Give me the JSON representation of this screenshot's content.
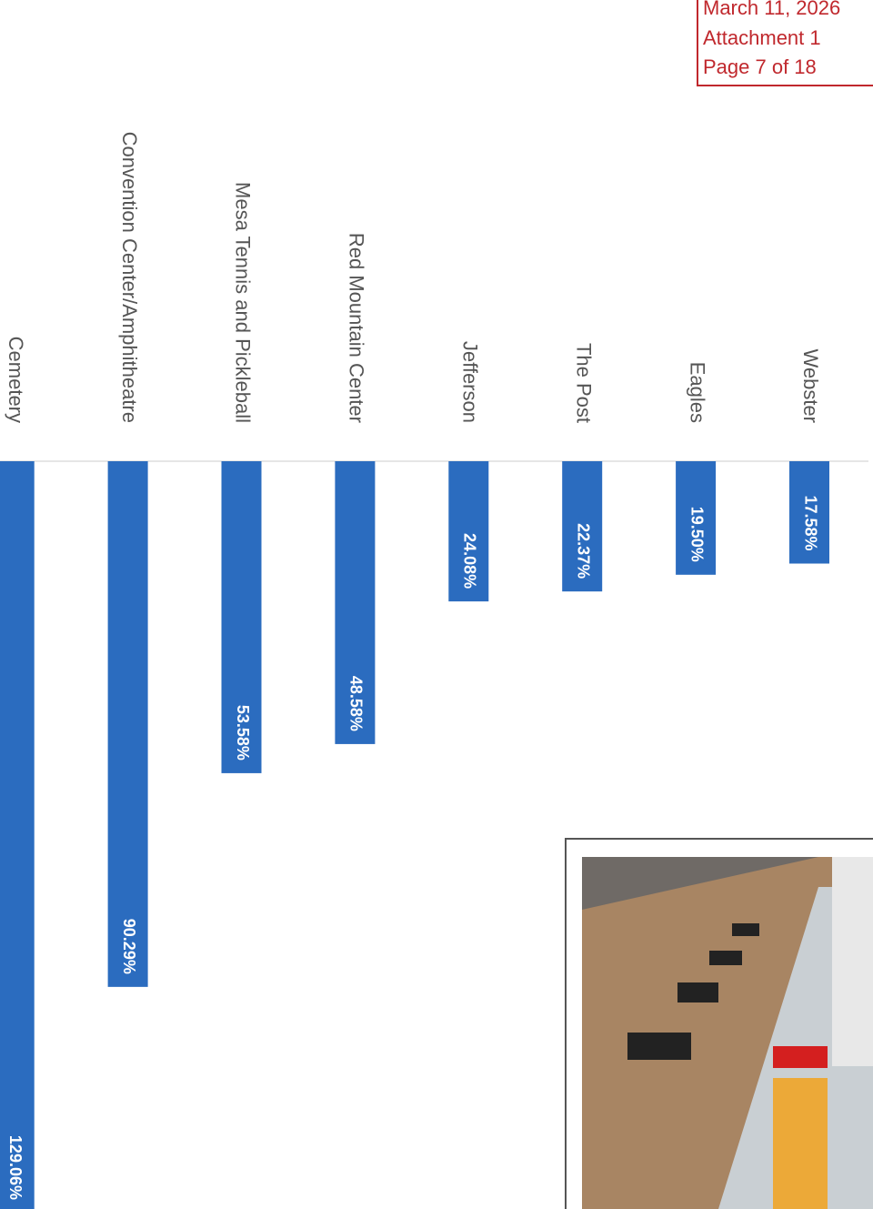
{
  "stamp": {
    "lines": [
      "March 11, 2026",
      "Attachment 1",
      "Page 7 of 18"
    ]
  },
  "chart_data": {
    "type": "bar",
    "categories": [
      "Webster",
      "Eagles",
      "The Post",
      "Jefferson",
      "Red Mountain Center",
      "Mesa Tennis and Pickleball",
      "Convention Center/Amphitheatre",
      "Cemetery"
    ],
    "values": [
      17.58,
      19.5,
      22.37,
      24.08,
      48.58,
      53.58,
      90.29,
      129.06
    ],
    "value_labels": [
      "17.58%",
      "19.50%",
      "22.37%",
      "24.08%",
      "48.58%",
      "53.58%",
      "90.29%",
      "129.06%"
    ],
    "color": "#2b6cbf",
    "ylim": [
      0,
      130
    ]
  }
}
